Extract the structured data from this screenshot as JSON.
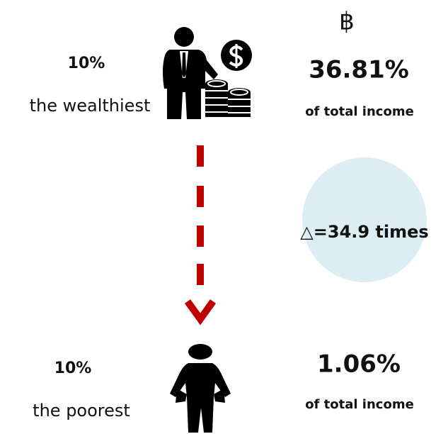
{
  "top": {
    "share": "10%",
    "label": "the wealthiest",
    "currency": "฿",
    "income_share": "36.81%",
    "income_note": "of total income"
  },
  "ratio": "△=34.9 times",
  "bottom": {
    "share": "10%",
    "label": "the poorest",
    "income_share": "1.06%",
    "income_note": "of total income"
  }
}
